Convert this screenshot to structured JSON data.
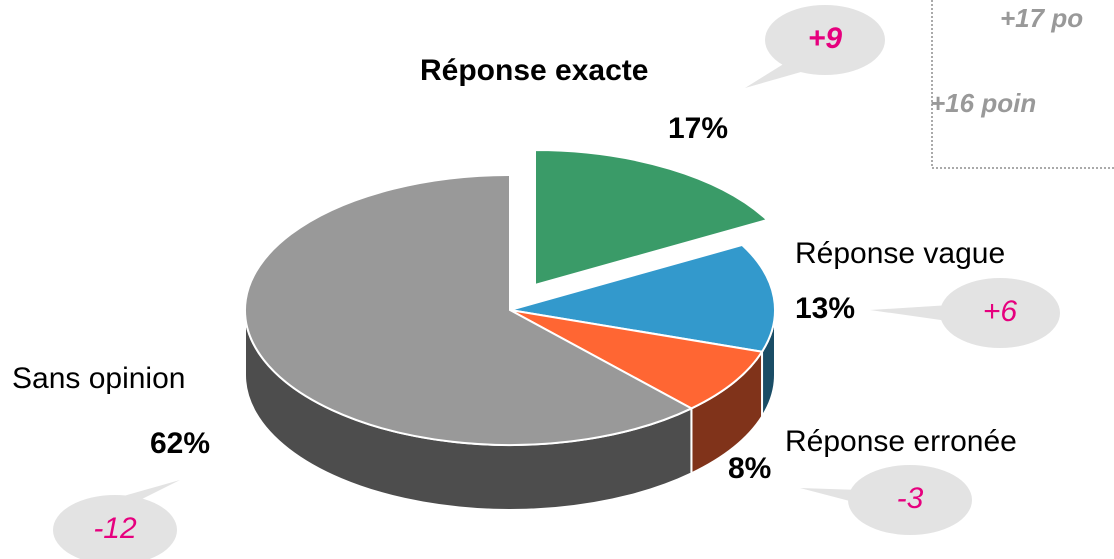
{
  "chart_data": {
    "type": "pie3d",
    "categories": [
      "Réponse exacte",
      "Réponse vague",
      "Réponse erronée",
      "Sans opinion"
    ],
    "values": [
      17,
      13,
      8,
      62
    ],
    "value_labels": [
      "17%",
      "13%",
      "8%",
      "62%"
    ],
    "colors": [
      "#3a9b68",
      "#3399cc",
      "#ff6633",
      "#999999"
    ],
    "changes": [
      9,
      6,
      -3,
      -12
    ],
    "change_labels": [
      "+9",
      "+6",
      "-3",
      "-12"
    ],
    "annotations": [
      "+17 po",
      "+16 poin"
    ]
  }
}
